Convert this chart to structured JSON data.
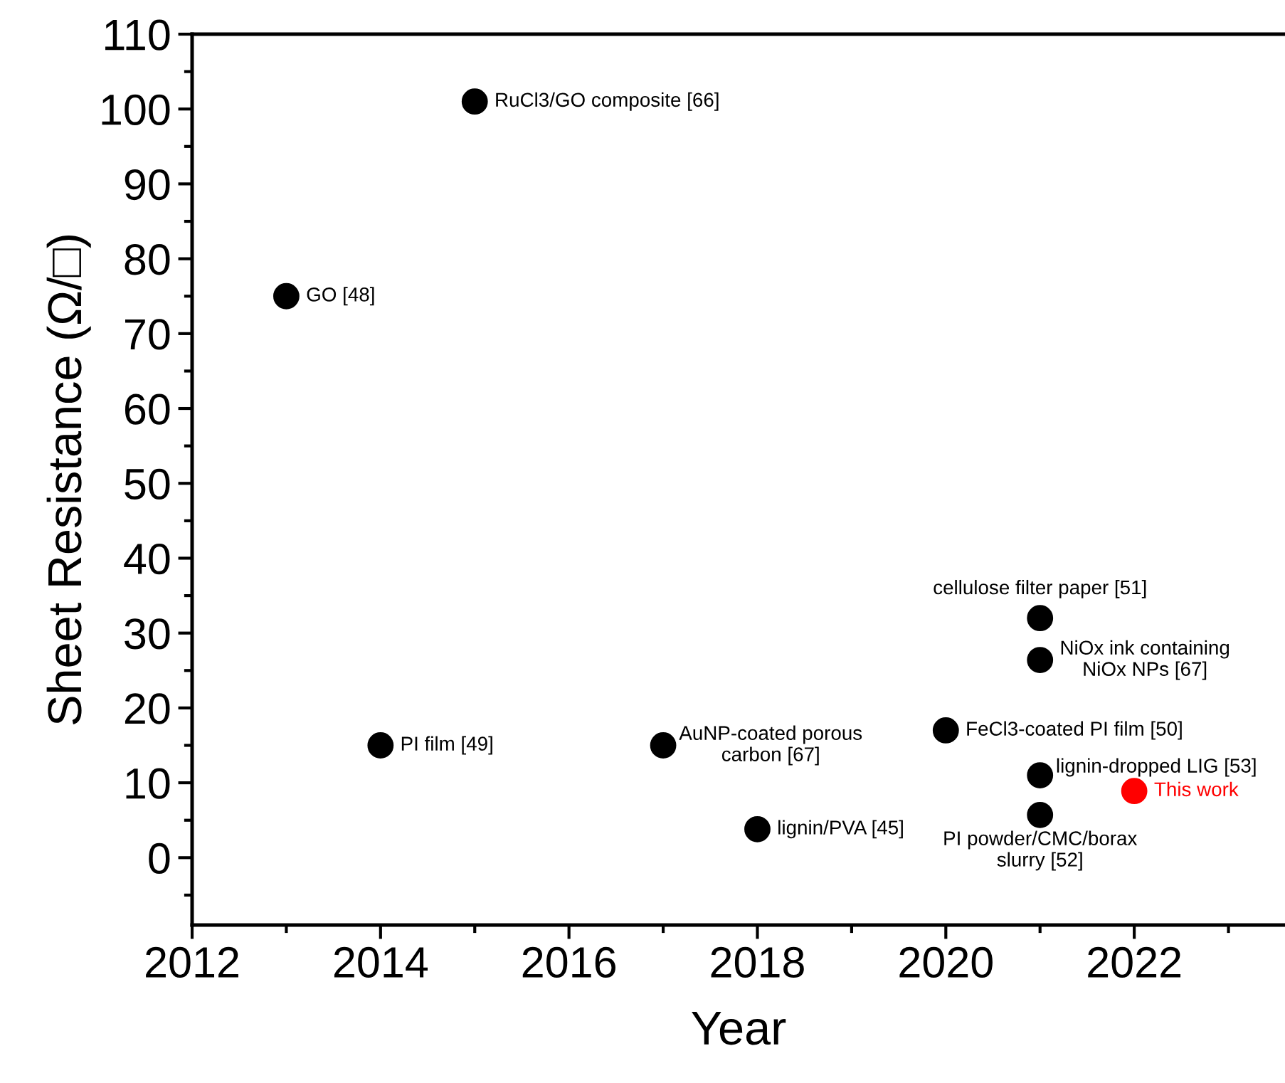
{
  "chart_data": {
    "type": "scatter",
    "xlabel": "Year",
    "ylabel": "Sheet Resistance (Ω/□)",
    "x": [
      2013,
      2014,
      2015,
      2017,
      2018,
      2020,
      2021,
      2021,
      2021,
      2021,
      2022
    ],
    "values": [
      75,
      15,
      101,
      15,
      3.8,
      17,
      32,
      26.4,
      11,
      5.7,
      8.9
    ],
    "colors": [
      "#000000",
      "#000000",
      "#000000",
      "#000000",
      "#000000",
      "#000000",
      "#000000",
      "#000000",
      "#000000",
      "#000000",
      "#ff0000"
    ],
    "marker": "circle",
    "xlim": [
      2012,
      2023.6
    ],
    "xticks": [
      2012,
      2014,
      2016,
      2018,
      2020,
      2022
    ],
    "ylim": [
      -9,
      110
    ],
    "yticks": [
      0,
      10,
      20,
      30,
      40,
      50,
      60,
      70,
      80,
      90,
      100,
      110
    ],
    "grid": false,
    "legend": false,
    "annotations": [
      {
        "text": "GO [48]",
        "x": 2013,
        "y": 75
      },
      {
        "text": "PI film [49]",
        "x": 2014,
        "y": 15
      },
      {
        "text": "RuCl3/GO composite [66]",
        "x": 2015,
        "y": 101
      },
      {
        "text": "AuNP-coated porous\ncarbon [67]",
        "x": 2017,
        "y": 15
      },
      {
        "text": "lignin/PVA [45]",
        "x": 2018,
        "y": 3.8
      },
      {
        "text": "FeCl3-coated PI film [50]",
        "x": 2020,
        "y": 17
      },
      {
        "text": "cellulose filter paper [51]",
        "x": 2021,
        "y": 32
      },
      {
        "text": "NiOx ink containing\nNiOx NPs [67]",
        "x": 2021,
        "y": 26.4
      },
      {
        "text": "lignin-dropped LIG [53]",
        "x": 2021,
        "y": 11
      },
      {
        "text": "PI powder/CMC/borax\nslurry [52]",
        "x": 2021,
        "y": 5.7
      },
      {
        "text": "This work",
        "x": 2022,
        "y": 8.9
      }
    ]
  }
}
